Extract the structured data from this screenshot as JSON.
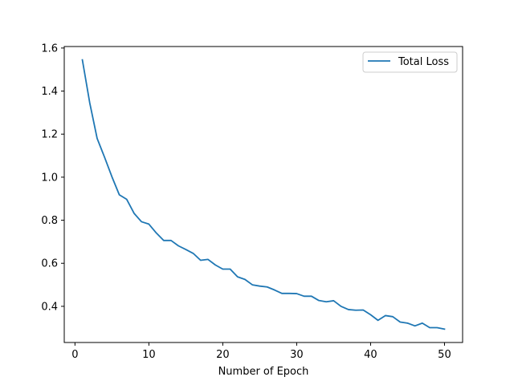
{
  "chart_data": {
    "type": "line",
    "title": "",
    "xlabel": "Number of Epoch",
    "ylabel": "",
    "xlim": [
      -1.45,
      52.45
    ],
    "ylim": [
      0.232,
      1.607
    ],
    "xticks": [
      0,
      10,
      20,
      30,
      40,
      50
    ],
    "xtick_labels": [
      "0",
      "10",
      "20",
      "30",
      "40",
      "50"
    ],
    "yticks": [
      0.4,
      0.6,
      0.8,
      1.0,
      1.2,
      1.4,
      1.6
    ],
    "ytick_labels": [
      "0.4",
      "0.6",
      "0.8",
      "1.0",
      "1.2",
      "1.4",
      "1.6"
    ],
    "grid": false,
    "legend_position": "top-right",
    "series": [
      {
        "name": "Total Loss",
        "color": "#1f77b4",
        "x": [
          1,
          2,
          3,
          4,
          5,
          6,
          7,
          8,
          9,
          10,
          11,
          12,
          13,
          14,
          15,
          16,
          17,
          18,
          19,
          20,
          21,
          22,
          23,
          24,
          25,
          26,
          27,
          28,
          29,
          30,
          31,
          32,
          33,
          34,
          35,
          36,
          37,
          38,
          39,
          40,
          41,
          42,
          43,
          44,
          45,
          46,
          47,
          48,
          49,
          50
        ],
        "values": [
          1.545,
          1.345,
          1.18,
          1.093,
          1.002,
          0.918,
          0.897,
          0.832,
          0.793,
          0.782,
          0.741,
          0.706,
          0.706,
          0.681,
          0.664,
          0.646,
          0.614,
          0.618,
          0.592,
          0.573,
          0.573,
          0.537,
          0.525,
          0.5,
          0.494,
          0.49,
          0.476,
          0.46,
          0.46,
          0.459,
          0.447,
          0.447,
          0.427,
          0.421,
          0.426,
          0.4,
          0.385,
          0.382,
          0.383,
          0.361,
          0.335,
          0.357,
          0.352,
          0.327,
          0.322,
          0.309,
          0.322,
          0.301,
          0.301,
          0.294
        ]
      }
    ]
  }
}
